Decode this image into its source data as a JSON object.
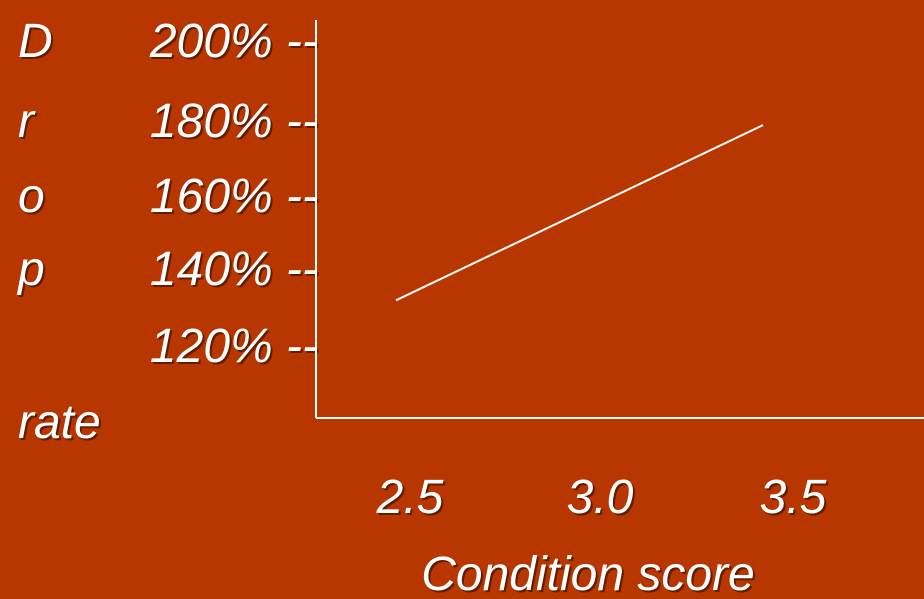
{
  "chart_data": {
    "type": "line",
    "title": "",
    "ylabel_letters": [
      "D",
      "r",
      "o",
      "p",
      "rate"
    ],
    "y_tick_labels": [
      "200% --",
      "180% --",
      "160% --",
      "140% --",
      "120% --"
    ],
    "x_tick_labels": [
      "2.5",
      "3.0",
      "3.5"
    ],
    "xlabel": "Condition score",
    "ylim": [
      100,
      200
    ],
    "xlim": [
      2.0,
      4.0
    ],
    "series": [
      {
        "x": [
          2.5,
          3.5
        ],
        "y": [
          128,
          176
        ]
      }
    ],
    "grid": false,
    "legend": "none"
  },
  "colors": {
    "background": "#B83600",
    "foreground": "#FFFFFF"
  }
}
